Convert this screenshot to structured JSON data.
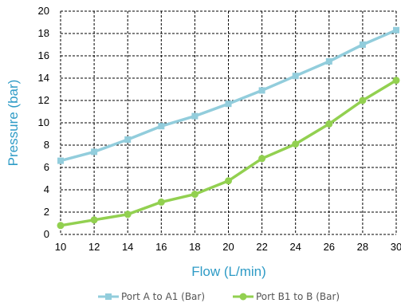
{
  "colors": {
    "series_a": "#92CDDC",
    "series_b": "#92D050",
    "axis_title": "#2E9BC6",
    "grid": "#000000"
  },
  "chart_data": {
    "type": "line",
    "xlabel": "Flow (L/min)",
    "ylabel": "Pressure (bar)",
    "xlim": [
      10,
      30
    ],
    "ylim": [
      0,
      20
    ],
    "xticks": [
      10,
      12,
      14,
      16,
      18,
      20,
      22,
      24,
      26,
      28,
      30
    ],
    "yticks": [
      0,
      2,
      4,
      6,
      8,
      10,
      12,
      14,
      16,
      18,
      20
    ],
    "grid": true,
    "grid_style": "dashed",
    "legend_position": "bottom",
    "x": [
      10,
      12,
      14,
      16,
      18,
      20,
      22,
      24,
      26,
      28,
      30
    ],
    "series": [
      {
        "name": "Port A to A1 (Bar)",
        "marker": "square",
        "color": "#92CDDC",
        "values": [
          6.6,
          7.4,
          8.5,
          9.7,
          10.6,
          11.7,
          12.9,
          14.2,
          15.5,
          17.0,
          18.3
        ]
      },
      {
        "name": "Port B1 to B (Bar)",
        "marker": "circle",
        "color": "#92D050",
        "values": [
          0.8,
          1.3,
          1.8,
          2.9,
          3.6,
          4.8,
          6.8,
          8.1,
          9.9,
          12.0,
          13.8
        ]
      }
    ]
  }
}
